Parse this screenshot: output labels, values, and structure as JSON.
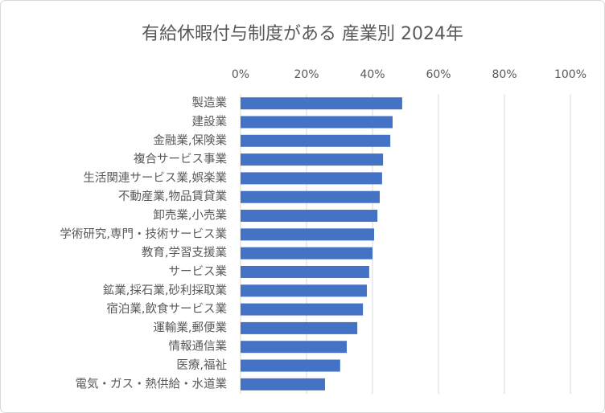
{
  "chart_data": {
    "type": "bar",
    "orientation": "horizontal",
    "title": "有給休暇付与制度がある 産業別 2024年",
    "categories": [
      "製造業",
      "建設業",
      "金融業,保険業",
      "複合サービス事業",
      "生活関連サービス業,娯楽業",
      "不動産業,物品賃貸業",
      "卸売業,小売業",
      "学術研究,専門・技術サービス業",
      "教育,学習支援業",
      "サービス業",
      "鉱業,採石業,砂利採取業",
      "宿泊業,飲食サービス業",
      "運輸業,郵便業",
      "情報通信業",
      "医療,福祉",
      "電気・ガス・熱供給・水道業"
    ],
    "values": [
      49.0,
      46.1,
      45.4,
      43.2,
      42.9,
      42.2,
      41.5,
      40.5,
      40.0,
      39.0,
      38.3,
      37.1,
      35.4,
      32.2,
      30.2,
      25.6
    ],
    "color": "#4472c4",
    "xlim": [
      0,
      100
    ],
    "xticks": [
      {
        "value": 0,
        "label": "0%"
      },
      {
        "value": 20,
        "label": "20%"
      },
      {
        "value": 40,
        "label": "40%"
      },
      {
        "value": 60,
        "label": "60%"
      },
      {
        "value": 80,
        "label": "80%"
      },
      {
        "value": 100,
        "label": "100%"
      }
    ],
    "grid": true
  }
}
